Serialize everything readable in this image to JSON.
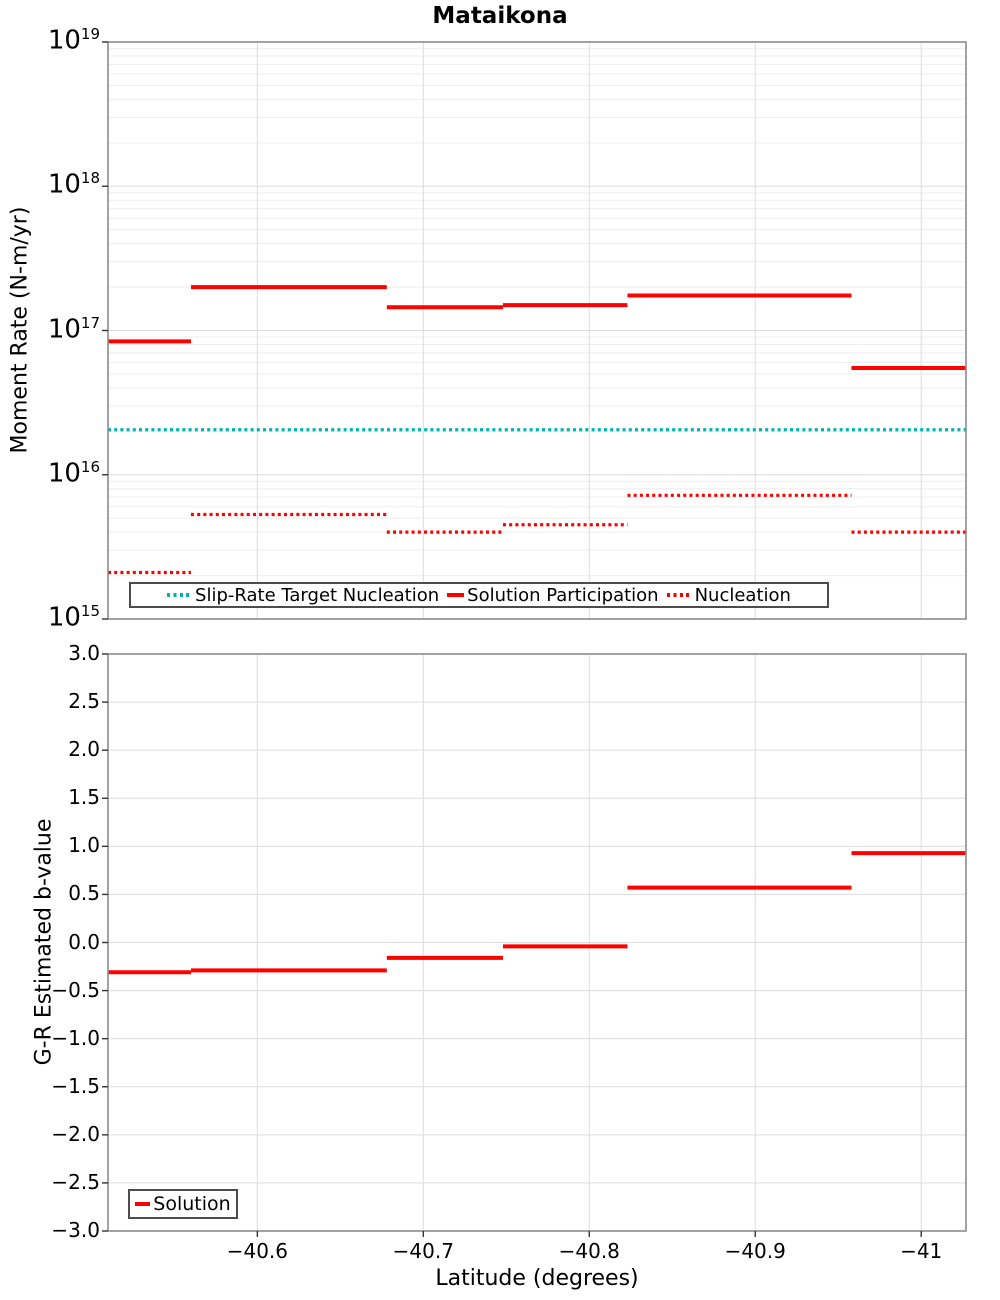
{
  "title": "Mataikona",
  "colors": {
    "solution": "#ff0000",
    "target": "#00b2b2",
    "grid_major": "#dcdcdc",
    "grid_minor": "#eeeeee",
    "spine": "#8c8c8c",
    "tick": "#333333",
    "legend_border": "#4c4c4c"
  },
  "chart_data": [
    {
      "type": "line",
      "title": "Mataikona",
      "ylabel": "Moment Rate (N-m/yr)",
      "xlabel": "",
      "yscale": "log",
      "ylim": [
        1000000000000000.0,
        1e+19
      ],
      "xlim": [
        -40.51,
        -41.027
      ],
      "grid": true,
      "legend_position": "lower left",
      "yticks": [
        {
          "v": 1e+19,
          "base": "10",
          "exp": "19"
        },
        {
          "v": 1e+18,
          "base": "10",
          "exp": "18"
        },
        {
          "v": 1e+17,
          "base": "10",
          "exp": "17"
        },
        {
          "v": 1e+16,
          "base": "10",
          "exp": "16"
        },
        {
          "v": 1000000000000000.0,
          "base": "10",
          "exp": "15"
        }
      ],
      "xticks": [
        {
          "v": -40.6,
          "label": "−40.6"
        },
        {
          "v": -40.7,
          "label": "−40.7"
        },
        {
          "v": -40.8,
          "label": "−40.8"
        },
        {
          "v": -40.9,
          "label": "−40.9"
        },
        {
          "v": -41.0,
          "label": "−41"
        }
      ],
      "series": [
        {
          "name": "Slip-Rate Target Nucleation",
          "style": "dotted",
          "color": "#00b2b2",
          "segments": [
            {
              "x1": -40.51,
              "x2": -41.027,
              "y": 2.05e+16
            }
          ]
        },
        {
          "name": "Solution Participation",
          "style": "solid",
          "color": "#ff0000",
          "segments": [
            {
              "x1": -40.51,
              "x2": -40.56,
              "y": 8.4e+16
            },
            {
              "x1": -40.56,
              "x2": -40.678,
              "y": 2e+17
            },
            {
              "x1": -40.678,
              "x2": -40.748,
              "y": 1.45e+17
            },
            {
              "x1": -40.748,
              "x2": -40.823,
              "y": 1.5e+17
            },
            {
              "x1": -40.823,
              "x2": -40.958,
              "y": 1.75e+17
            },
            {
              "x1": -40.958,
              "x2": -41.027,
              "y": 5.5e+16
            }
          ]
        },
        {
          "name": "Nucleation",
          "style": "dotted",
          "color": "#ff0000",
          "segments": [
            {
              "x1": -40.51,
              "x2": -40.56,
              "y": 2100000000000000.0
            },
            {
              "x1": -40.56,
              "x2": -40.678,
              "y": 5300000000000000.0
            },
            {
              "x1": -40.678,
              "x2": -40.748,
              "y": 4000000000000000.0
            },
            {
              "x1": -40.748,
              "x2": -40.823,
              "y": 4500000000000000.0
            },
            {
              "x1": -40.823,
              "x2": -40.958,
              "y": 7200000000000000.0
            },
            {
              "x1": -40.958,
              "x2": -41.027,
              "y": 4000000000000000.0
            }
          ]
        }
      ]
    },
    {
      "type": "line",
      "title": "",
      "ylabel": "G-R Estimated b-value",
      "xlabel": "Latitude (degrees)",
      "yscale": "linear",
      "ylim": [
        -3.0,
        3.0
      ],
      "xlim": [
        -40.51,
        -41.027
      ],
      "grid": true,
      "legend_position": "lower left",
      "yticks": [
        {
          "v": 3.0,
          "label": "3.0"
        },
        {
          "v": 2.5,
          "label": "2.5"
        },
        {
          "v": 2.0,
          "label": "2.0"
        },
        {
          "v": 1.5,
          "label": "1.5"
        },
        {
          "v": 1.0,
          "label": "1.0"
        },
        {
          "v": 0.5,
          "label": "0.5"
        },
        {
          "v": 0.0,
          "label": "0.0"
        },
        {
          "v": -0.5,
          "label": "−0.5"
        },
        {
          "v": -1.0,
          "label": "−1.0"
        },
        {
          "v": -1.5,
          "label": "−1.5"
        },
        {
          "v": -2.0,
          "label": "−2.0"
        },
        {
          "v": -2.5,
          "label": "−2.5"
        },
        {
          "v": -3.0,
          "label": "−3.0"
        }
      ],
      "xticks": [
        {
          "v": -40.6,
          "label": "−40.6"
        },
        {
          "v": -40.7,
          "label": "−40.7"
        },
        {
          "v": -40.8,
          "label": "−40.8"
        },
        {
          "v": -40.9,
          "label": "−40.9"
        },
        {
          "v": -41.0,
          "label": "−41"
        }
      ],
      "series": [
        {
          "name": "Solution",
          "style": "solid",
          "color": "#ff0000",
          "segments": [
            {
              "x1": -40.51,
              "x2": -40.56,
              "y": -0.31
            },
            {
              "x1": -40.56,
              "x2": -40.678,
              "y": -0.29
            },
            {
              "x1": -40.678,
              "x2": -40.748,
              "y": -0.16
            },
            {
              "x1": -40.748,
              "x2": -40.823,
              "y": -0.04
            },
            {
              "x1": -40.823,
              "x2": -40.958,
              "y": 0.57
            },
            {
              "x1": -40.958,
              "x2": -41.027,
              "y": 0.93
            }
          ]
        }
      ]
    }
  ]
}
